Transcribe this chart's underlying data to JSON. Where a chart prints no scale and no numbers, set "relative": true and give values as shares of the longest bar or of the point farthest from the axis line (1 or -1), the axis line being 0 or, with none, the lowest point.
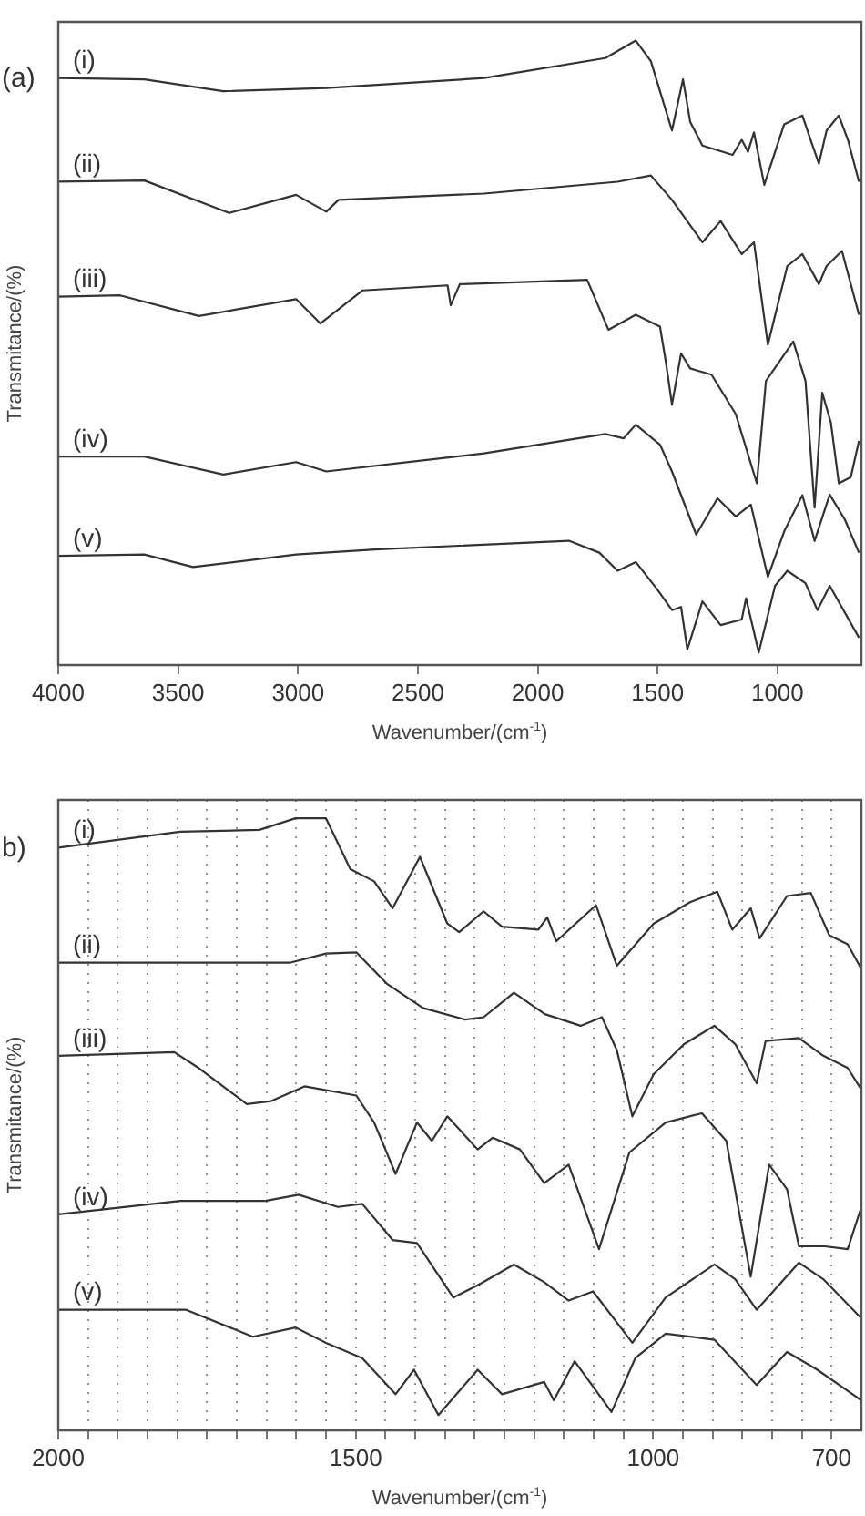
{
  "chart_data": [
    {
      "type": "line",
      "relative": true,
      "annotations": [
        "(a)"
      ],
      "xlabel": "Wavenumber/(cm$^{-1}$)",
      "ylabel": "Transmitance/(%)",
      "xlim": [
        4000,
        650
      ],
      "xticks": [
        4000,
        3500,
        3000,
        2500,
        2000,
        1500,
        1000
      ],
      "grid": false,
      "marker": "none",
      "line_style": "solid",
      "series": [
        {
          "name": "(i)",
          "color": "#333333",
          "x": [
            4000,
            3641,
            3312,
            2882,
            2224,
            1718,
            1591,
            1528,
            1490,
            1440,
            1394,
            1364,
            1313,
            1187,
            1149,
            1123,
            1098,
            1055,
            972,
            896,
            858,
            827,
            795,
            744,
            706,
            660
          ],
          "values": [
            0.94,
            0.938,
            0.919,
            0.924,
            0.94,
            0.972,
            1.0,
            0.967,
            0.919,
            0.856,
            0.938,
            0.87,
            0.832,
            0.817,
            0.841,
            0.822,
            0.853,
            0.769,
            0.866,
            0.88,
            0.837,
            0.803,
            0.856,
            0.88,
            0.841,
            0.774
          ]
        },
        {
          "name": "(ii)",
          "color": "#333333",
          "x": [
            4000,
            3641,
            3287,
            3008,
            2882,
            2831,
            2224,
            1667,
            1528,
            1440,
            1313,
            1237,
            1149,
            1098,
            1040,
            959,
            896,
            827,
            795,
            731,
            660
          ],
          "values": [
            0.774,
            0.776,
            0.724,
            0.753,
            0.726,
            0.745,
            0.755,
            0.774,
            0.784,
            0.745,
            0.677,
            0.711,
            0.658,
            0.677,
            0.513,
            0.639,
            0.658,
            0.61,
            0.639,
            0.663,
            0.561
          ]
        },
        {
          "name": "(iii)",
          "color": "#333333",
          "x": [
            4000,
            3742,
            3413,
            3008,
            2907,
            2730,
            2376,
            2363,
            2325,
            1794,
            1705,
            1591,
            1490,
            1465,
            1440,
            1402,
            1364,
            1275,
            1174,
            1086,
            1048,
            934,
            883,
            845,
            813,
            777,
            744,
            694,
            660
          ],
          "values": [
            0.59,
            0.592,
            0.559,
            0.586,
            0.547,
            0.6,
            0.608,
            0.576,
            0.61,
            0.617,
            0.537,
            0.561,
            0.542,
            0.484,
            0.417,
            0.499,
            0.475,
            0.465,
            0.402,
            0.291,
            0.455,
            0.518,
            0.455,
            0.252,
            0.436,
            0.388,
            0.291,
            0.301,
            0.359
          ]
        },
        {
          "name": "(iv)",
          "color": "#333333",
          "x": [
            4000,
            3641,
            3312,
            3008,
            2882,
            2224,
            1718,
            1642,
            1591,
            1490,
            1440,
            1339,
            1250,
            1174,
            1111,
            1040,
            972,
            896,
            845,
            782,
            719,
            660
          ],
          "values": [
            0.334,
            0.334,
            0.305,
            0.325,
            0.31,
            0.339,
            0.37,
            0.363,
            0.385,
            0.353,
            0.31,
            0.209,
            0.267,
            0.238,
            0.257,
            0.141,
            0.214,
            0.272,
            0.199,
            0.273,
            0.233,
            0.18
          ]
        },
        {
          "name": "(v)",
          "color": "#333333",
          "x": [
            4000,
            3641,
            3438,
            3008,
            2679,
            1870,
            1743,
            1667,
            1591,
            1503,
            1440,
            1402,
            1376,
            1313,
            1237,
            1149,
            1131,
            1078,
            1010,
            959,
            883,
            833,
            782,
            660
          ],
          "values": [
            0.175,
            0.177,
            0.157,
            0.177,
            0.185,
            0.199,
            0.18,
            0.151,
            0.165,
            0.122,
            0.088,
            0.093,
            0.025,
            0.102,
            0.064,
            0.073,
            0.107,
            0.02,
            0.127,
            0.151,
            0.131,
            0.088,
            0.127,
            0.044
          ]
        }
      ]
    },
    {
      "type": "line",
      "relative": true,
      "annotations": [
        "b)"
      ],
      "xlabel": "Wavenumber/(cm$^{-1}$)",
      "ylabel": "Transmitance/(%)",
      "xlim": [
        2000,
        650
      ],
      "xticks": [
        2000,
        {
          "value": 1950,
          "label": null
        },
        {
          "value": 1900,
          "label": null
        },
        {
          "value": 1850,
          "label": null
        },
        {
          "value": 1800,
          "label": null
        },
        {
          "value": 1750,
          "label": null
        },
        {
          "value": 1700,
          "label": null
        },
        {
          "value": 1650,
          "label": null
        },
        {
          "value": 1600,
          "label": null
        },
        {
          "value": 1550,
          "label": null
        },
        1500,
        {
          "value": 1450,
          "label": null
        },
        {
          "value": 1400,
          "label": null
        },
        {
          "value": 1350,
          "label": null
        },
        {
          "value": 1300,
          "label": null
        },
        {
          "value": 1250,
          "label": null
        },
        {
          "value": 1200,
          "label": null
        },
        {
          "value": 1150,
          "label": null
        },
        {
          "value": 1100,
          "label": null
        },
        {
          "value": 1050,
          "label": null
        },
        1000,
        {
          "value": 950,
          "label": null
        },
        {
          "value": 900,
          "label": null
        },
        {
          "value": 850,
          "label": null
        },
        {
          "value": 800,
          "label": null
        },
        {
          "value": 750,
          "label": null
        },
        700
      ],
      "grid": "x",
      "marker": "none",
      "line_style": "solid",
      "series": [
        {
          "name": "(i)",
          "color": "#333333",
          "x": [
            2000,
            1795,
            1662,
            1601,
            1550,
            1509,
            1469,
            1438,
            1392,
            1346,
            1326,
            1285,
            1254,
            1193,
            1178,
            1163,
            1096,
            1061,
            999,
            938,
            892,
            867,
            836,
            821,
            775,
            735,
            704,
            673,
            650
          ],
          "values": [
            0.952,
            0.978,
            0.981,
            1.0,
            1.0,
            0.917,
            0.897,
            0.853,
            0.937,
            0.828,
            0.814,
            0.848,
            0.823,
            0.818,
            0.838,
            0.799,
            0.858,
            0.759,
            0.828,
            0.863,
            0.88,
            0.818,
            0.853,
            0.804,
            0.873,
            0.878,
            0.809,
            0.794,
            0.754
          ]
        },
        {
          "name": "(ii)",
          "color": "#333333",
          "x": [
            2000,
            1611,
            1550,
            1499,
            1448,
            1387,
            1316,
            1285,
            1234,
            1182,
            1122,
            1086,
            1061,
            1035,
            999,
            948,
            897,
            862,
            826,
            811,
            755,
            714,
            673,
            650
          ],
          "values": [
            0.764,
            0.764,
            0.779,
            0.781,
            0.73,
            0.69,
            0.671,
            0.675,
            0.715,
            0.68,
            0.661,
            0.675,
            0.621,
            0.513,
            0.582,
            0.631,
            0.661,
            0.631,
            0.567,
            0.636,
            0.641,
            0.612,
            0.592,
            0.557
          ]
        },
        {
          "name": "(iii)",
          "color": "#333333",
          "x": [
            2000,
            1805,
            1764,
            1683,
            1642,
            1586,
            1499,
            1469,
            1433,
            1397,
            1372,
            1346,
            1295,
            1270,
            1224,
            1183,
            1142,
            1091,
            1040,
            979,
            918,
            877,
            836,
            805,
            775,
            755,
            714,
            673,
            650
          ],
          "values": [
            0.612,
            0.618,
            0.592,
            0.533,
            0.538,
            0.562,
            0.547,
            0.503,
            0.419,
            0.503,
            0.473,
            0.513,
            0.459,
            0.478,
            0.459,
            0.404,
            0.434,
            0.296,
            0.454,
            0.503,
            0.518,
            0.473,
            0.251,
            0.434,
            0.394,
            0.301,
            0.301,
            0.296,
            0.365
          ]
        },
        {
          "name": "(iv)",
          "color": "#333333",
          "x": [
            2000,
            1795,
            1652,
            1596,
            1530,
            1489,
            1438,
            1397,
            1336,
            1295,
            1234,
            1183,
            1142,
            1101,
            1035,
            979,
            897,
            862,
            826,
            755,
            714,
            650
          ],
          "values": [
            0.353,
            0.375,
            0.375,
            0.385,
            0.365,
            0.37,
            0.311,
            0.306,
            0.217,
            0.237,
            0.271,
            0.242,
            0.212,
            0.227,
            0.143,
            0.217,
            0.271,
            0.247,
            0.197,
            0.274,
            0.247,
            0.183
          ]
        },
        {
          "name": "(v)",
          "color": "#333333",
          "x": [
            2000,
            1785,
            1673,
            1601,
            1550,
            1489,
            1433,
            1402,
            1361,
            1295,
            1254,
            1183,
            1167,
            1132,
            1070,
            1030,
            979,
            897,
            826,
            775,
            724,
            650
          ],
          "values": [
            0.197,
            0.197,
            0.153,
            0.168,
            0.143,
            0.118,
            0.059,
            0.099,
            0.025,
            0.099,
            0.059,
            0.079,
            0.049,
            0.113,
            0.03,
            0.118,
            0.158,
            0.148,
            0.074,
            0.128,
            0.099,
            0.049
          ]
        }
      ]
    }
  ]
}
